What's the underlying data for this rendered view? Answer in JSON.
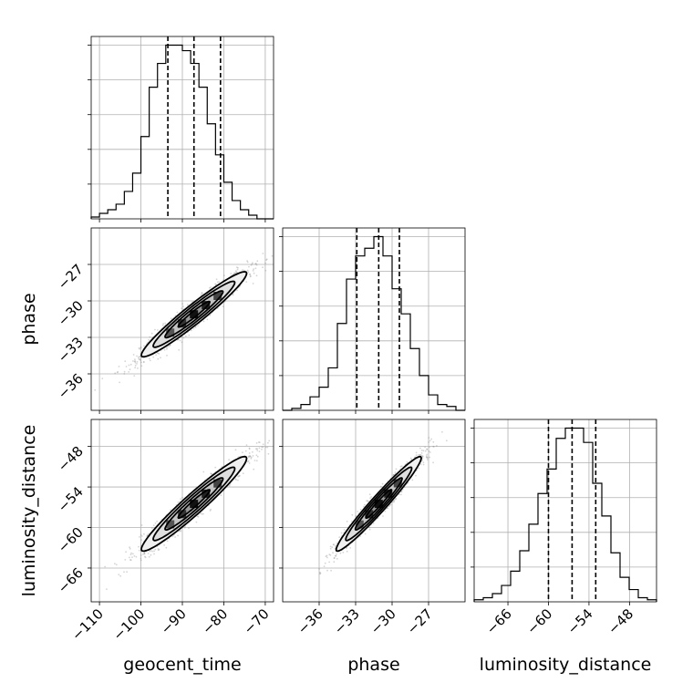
{
  "chart_data": {
    "type": "corner",
    "parameters": [
      "geocent_time",
      "phase",
      "luminosity_distance"
    ],
    "ranges": {
      "geocent_time": [
        -112,
        -68
      ],
      "phase": [
        -39,
        -24
      ],
      "luminosity_distance": [
        -71,
        -44
      ]
    },
    "ticks": {
      "geocent_time": [
        -110,
        -100,
        -90,
        -80,
        -70
      ],
      "phase": [
        -36,
        -33,
        -30,
        -27
      ],
      "luminosity_distance": [
        -66,
        -60,
        -54,
        -48
      ]
    },
    "tick_labels": {
      "geocent_time": [
        "−110",
        "−100",
        "−90",
        "−80",
        "−70"
      ],
      "phase": [
        "−36",
        "−33",
        "−30",
        "−27"
      ],
      "luminosity_distance": [
        "−66",
        "−60",
        "−54",
        "−48"
      ]
    },
    "quantiles": {
      "geocent_time": [
        -93.5,
        -87.2,
        -80.8
      ],
      "phase": [
        -32.9,
        -31.1,
        -29.4
      ],
      "luminosity_distance": [
        -60.0,
        -56.5,
        -53.0
      ]
    },
    "histograms": {
      "geocent_time": {
        "bin_start": -112,
        "bin_width": 2,
        "counts": [
          1,
          3,
          5,
          8,
          15,
          25,
          45,
          72,
          85,
          95,
          95,
          92,
          85,
          72,
          52,
          35,
          20,
          10,
          5,
          2,
          0,
          0
        ]
      },
      "phase": {
        "bin_start": -39,
        "bin_width": 0.75,
        "counts": [
          0,
          1,
          3,
          7,
          12,
          22,
          45,
          68,
          80,
          84,
          90,
          80,
          63,
          50,
          32,
          18,
          8,
          3,
          2,
          0
        ]
      },
      "luminosity_distance": {
        "bin_start": -71,
        "bin_width": 1.35,
        "counts": [
          1,
          2,
          4,
          8,
          15,
          25,
          38,
          53,
          65,
          80,
          85,
          85,
          78,
          58,
          42,
          24,
          12,
          6,
          2,
          1
        ]
      }
    },
    "correlations": {
      "phase|geocent_time": 0.96,
      "luminosity_distance|geocent_time": 0.96,
      "luminosity_distance|phase": 0.97
    },
    "xlabel_bottom": [
      "geocent_time",
      "phase",
      "luminosity_distance"
    ],
    "ylabel_left": [
      "phase",
      "luminosity_distance"
    ],
    "grid": true
  }
}
